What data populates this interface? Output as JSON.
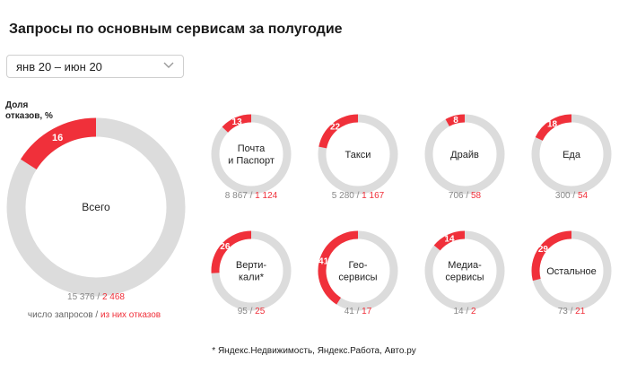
{
  "title": "Запросы по основным сервисам за полугодие",
  "period": {
    "selected": "янв 20 – июн 20"
  },
  "share_label": "Доля\nотказов, %",
  "legend": {
    "requests_label": "число запросов",
    "separator": " / ",
    "refusals_label": "из них отказов"
  },
  "footnote": "* Яндекс.Недвижимость, Яндекс.Работа, Авто.ру",
  "colors": {
    "accent": "#f0303a",
    "track": "#dcdcdc"
  },
  "chart_data": [
    {
      "type": "pie",
      "name": "Всего",
      "label_lines": [
        "Всего"
      ],
      "refusal_share": 16,
      "requests": "15 376",
      "refusals": "2 468"
    },
    {
      "type": "pie",
      "name": "Почта и Паспорт",
      "label_lines": [
        "Почта",
        "и Паспорт"
      ],
      "refusal_share": 13,
      "requests": "8 867",
      "refusals": "1 124"
    },
    {
      "type": "pie",
      "name": "Такси",
      "label_lines": [
        "Такси"
      ],
      "refusal_share": 22,
      "requests": "5 280",
      "refusals": "1 167"
    },
    {
      "type": "pie",
      "name": "Драйв",
      "label_lines": [
        "Драйв"
      ],
      "refusal_share": 8,
      "requests": "706",
      "refusals": "58"
    },
    {
      "type": "pie",
      "name": "Еда",
      "label_lines": [
        "Еда"
      ],
      "refusal_share": 18,
      "requests": "300",
      "refusals": "54"
    },
    {
      "type": "pie",
      "name": "Верти-кали*",
      "label_lines": [
        "Верти-",
        "кали*"
      ],
      "refusal_share": 26,
      "requests": "95",
      "refusals": "25"
    },
    {
      "type": "pie",
      "name": "Гео-сервисы",
      "label_lines": [
        "Гео-",
        "сервисы"
      ],
      "refusal_share": 41,
      "requests": "41",
      "refusals": "17"
    },
    {
      "type": "pie",
      "name": "Медиа-сервисы",
      "label_lines": [
        "Медиа-",
        "сервисы"
      ],
      "refusal_share": 14,
      "requests": "14",
      "refusals": "2"
    },
    {
      "type": "pie",
      "name": "Остальное",
      "label_lines": [
        "Остальное"
      ],
      "refusal_share": 29,
      "requests": "73",
      "refusals": "21"
    }
  ]
}
